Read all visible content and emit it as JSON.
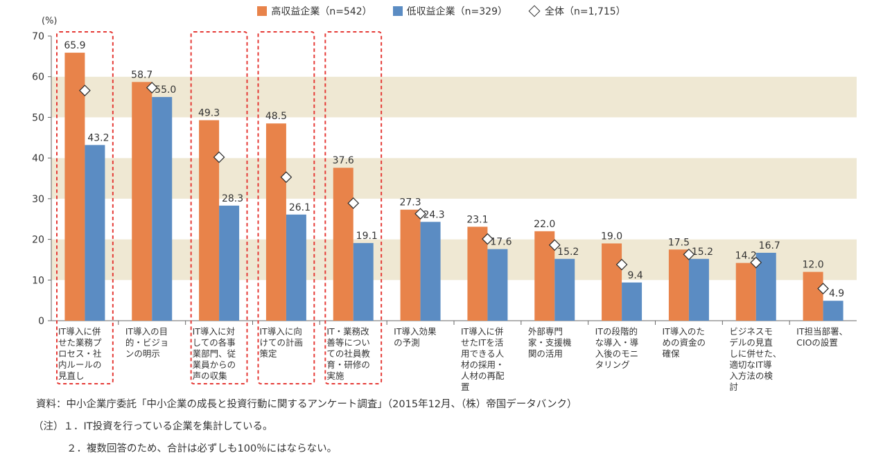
{
  "legend": {
    "high": "高収益企業（n=542）",
    "low": "低収益企業（n=329）",
    "all": "全体（n=1,715）"
  },
  "colors": {
    "high": "#E8834A",
    "low": "#5B8CC3",
    "band": "#EFE8D3",
    "highlight": "#E53935"
  },
  "chart_data": {
    "type": "bar",
    "yunit": "(%)",
    "ylim": [
      0,
      70
    ],
    "yticks": [
      0,
      10,
      20,
      30,
      40,
      50,
      60,
      70
    ],
    "categories": [
      [
        "IT導入に併",
        "せた業務プ",
        "ロセス・社",
        "内ルールの",
        "見直し"
      ],
      [
        "IT導入の目",
        "的・ビジョ",
        "ンの明示"
      ],
      [
        "IT導入に対",
        "しての各事",
        "業部門、従",
        "業員からの",
        "声の収集"
      ],
      [
        "IT導入に向",
        "けての計画",
        "策定"
      ],
      [
        "IT・業務改",
        "善等につい",
        "ての社員教",
        "育・研修の",
        "実施"
      ],
      [
        "IT導入効果",
        "の予測"
      ],
      [
        "IT導入に併",
        "せたITを活",
        "用できる人",
        "材の採用・",
        "人材の再配",
        "置"
      ],
      [
        "外部専門",
        "家・支援機",
        "関の活用"
      ],
      [
        "ITの段階的",
        "な導入・導",
        "入後のモニ",
        "タリング"
      ],
      [
        "IT導入のた",
        "めの資金の",
        "確保"
      ],
      [
        "ビジネスモ",
        "デルの見直",
        "しに併せた、",
        "適切なIT導",
        "入方法の検",
        "討"
      ],
      [
        "IT担当部署、",
        "CIOの設置"
      ]
    ],
    "series": [
      {
        "name": "高収益企業（n=542）",
        "values": [
          65.9,
          58.7,
          49.3,
          48.5,
          37.6,
          27.3,
          23.1,
          22.0,
          19.0,
          17.5,
          14.2,
          12.0
        ]
      },
      {
        "name": "低収益企業（n=329）",
        "values": [
          43.2,
          55.0,
          28.3,
          26.1,
          19.1,
          24.3,
          17.6,
          15.2,
          9.4,
          15.2,
          16.7,
          4.9
        ]
      }
    ],
    "total": {
      "name": "全体（n=1,715）",
      "values": [
        56.6,
        57.3,
        40.2,
        35.3,
        28.9,
        26.3,
        20.1,
        18.6,
        13.8,
        16.3,
        14.3,
        7.9
      ]
    },
    "value_labels": {
      "high": [
        "65.9",
        "58.7",
        "49.3",
        "48.5",
        "37.6",
        "27.3",
        "23.1",
        "22.0",
        "19.0",
        "17.5",
        "14.2",
        "12.0"
      ],
      "low": [
        "43.2",
        "55.0",
        "28.3",
        "26.1",
        "19.1",
        "24.3",
        "17.6",
        "15.2",
        "9.4",
        "15.2",
        "16.7",
        "4.9"
      ]
    },
    "highlighted_categories": [
      0,
      2,
      3,
      4
    ],
    "bands": "alternating beige/white every 10 points"
  },
  "footer": {
    "source": "資料：中小企業庁委託「中小企業の成長と投資行動に関するアンケート調査」（2015年12月、（株）帝国データバンク）",
    "note1": "（注）１．IT投資を行っている企業を集計している。",
    "note2": "２．複数回答のため、合計は必ずしも100％にはならない。"
  }
}
